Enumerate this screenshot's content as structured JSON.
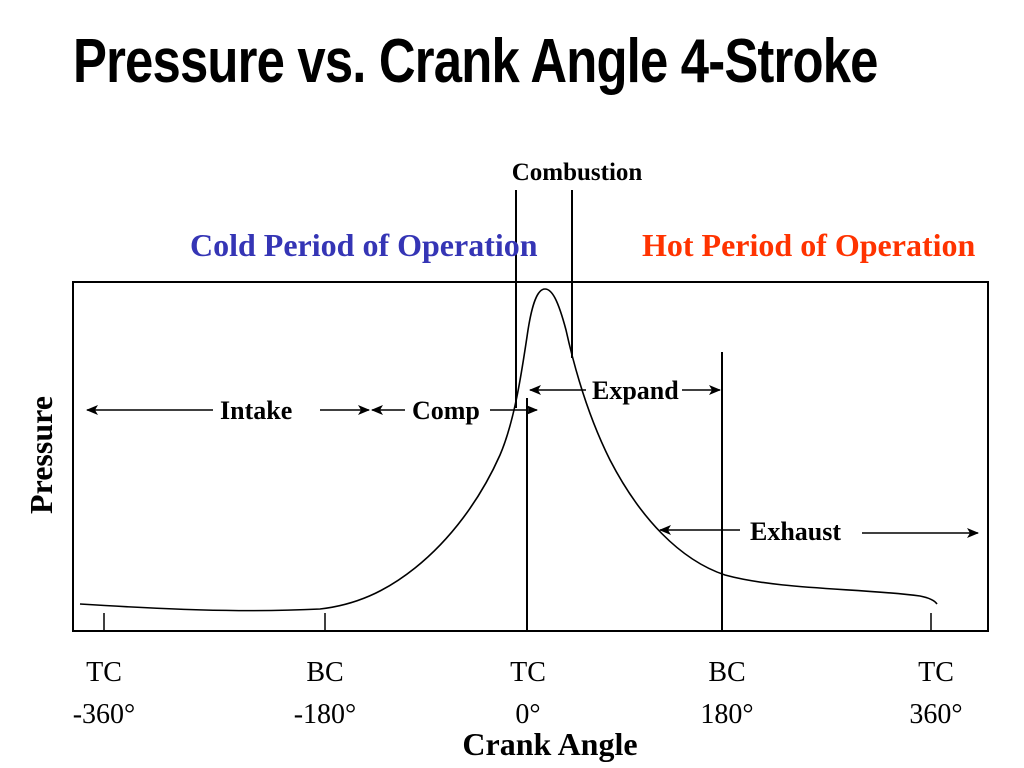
{
  "title": "Pressure vs. Crank Angle  4-Stroke",
  "combustion_label": "Combustion",
  "periods": {
    "cold": {
      "label": "Cold Period of Operation",
      "color": "#3535B5"
    },
    "hot": {
      "label": "Hot Period of Operation",
      "color": "#FF3300"
    }
  },
  "axes": {
    "y_label": "Pressure",
    "x_label": "Crank Angle"
  },
  "strokes": {
    "intake": "Intake",
    "compression": "Comp",
    "expansion": "Expand",
    "exhaust": "Exhaust"
  },
  "ticks": [
    {
      "position": "TC",
      "angle": "-360°"
    },
    {
      "position": "BC",
      "angle": "-180°"
    },
    {
      "position": "TC",
      "angle": "0°"
    },
    {
      "position": "BC",
      "angle": "180°"
    },
    {
      "position": "TC",
      "angle": "360°"
    }
  ]
}
